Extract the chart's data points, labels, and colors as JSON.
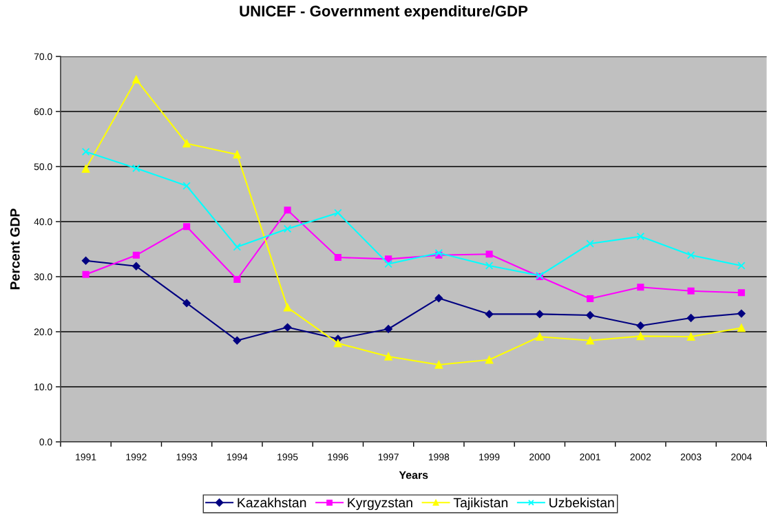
{
  "chart_data": {
    "type": "line",
    "title": "UNICEF - Government expenditure/GDP",
    "xlabel": "Years",
    "ylabel": "Percent GDP",
    "categories": [
      "1991",
      "1992",
      "1993",
      "1994",
      "1995",
      "1996",
      "1997",
      "1998",
      "1999",
      "2000",
      "2001",
      "2002",
      "2003",
      "2004"
    ],
    "series": [
      {
        "name": "Kazakhstan",
        "color": "#000080",
        "marker": "diamond",
        "values": [
          32.9,
          31.9,
          25.2,
          18.4,
          20.8,
          18.7,
          20.5,
          26.1,
          23.2,
          23.2,
          23.0,
          21.1,
          22.5,
          23.3
        ]
      },
      {
        "name": "Kyrgyzstan",
        "color": "#ff00ff",
        "marker": "square",
        "values": [
          30.4,
          33.9,
          39.1,
          29.5,
          42.1,
          33.5,
          33.2,
          33.9,
          34.1,
          30.0,
          26.0,
          28.1,
          27.4,
          27.1
        ]
      },
      {
        "name": "Tajikistan",
        "color": "#ffff00",
        "marker": "triangle",
        "values": [
          49.6,
          65.8,
          54.2,
          52.2,
          24.4,
          17.9,
          15.5,
          14.0,
          14.9,
          19.1,
          18.4,
          19.2,
          19.1,
          20.7
        ]
      },
      {
        "name": "Uzbekistan",
        "color": "#00ffff",
        "marker": "cross",
        "values": [
          52.7,
          49.7,
          46.5,
          35.4,
          38.7,
          41.6,
          32.3,
          34.3,
          32.0,
          30.2,
          36.0,
          37.3,
          33.9,
          32.0
        ]
      }
    ],
    "ylim": [
      0,
      70
    ],
    "yticks": [
      {
        "value": 0,
        "label": "0.0"
      },
      {
        "value": 10,
        "label": "10.0"
      },
      {
        "value": 20,
        "label": "20.0"
      },
      {
        "value": 30,
        "label": "30.0"
      },
      {
        "value": 40,
        "label": "40.0"
      },
      {
        "value": 50,
        "label": "50.0"
      },
      {
        "value": 60,
        "label": "60.0"
      },
      {
        "value": 70,
        "label": "70.0"
      }
    ],
    "grid": "y",
    "legend": "bottom",
    "line_style": "solid"
  }
}
